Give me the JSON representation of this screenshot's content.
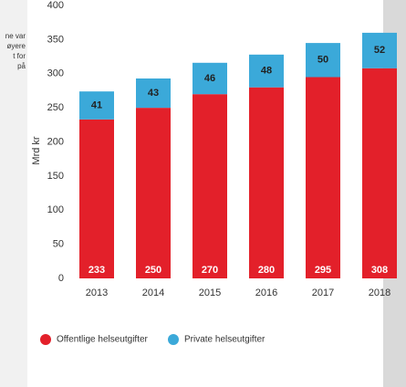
{
  "side_text": [
    "ne var",
    "øyere",
    "t for",
    "på"
  ],
  "chart_data": {
    "type": "stacked-bar",
    "ylabel": "Mrd kr",
    "categories": [
      "2013",
      "2014",
      "2015",
      "2016",
      "2017",
      "2018"
    ],
    "series": [
      {
        "name": "Offentlige helseutgifter",
        "color": "#e3202a",
        "values": [
          233,
          250,
          270,
          280,
          295,
          308
        ]
      },
      {
        "name": "Private helseutgifter",
        "color": "#3ba9d9",
        "values": [
          41,
          43,
          46,
          48,
          50,
          52
        ]
      }
    ],
    "ylim": [
      0,
      400
    ],
    "yticks": [
      0,
      50,
      100,
      150,
      200,
      250,
      300,
      350,
      400
    ],
    "grid": false
  }
}
